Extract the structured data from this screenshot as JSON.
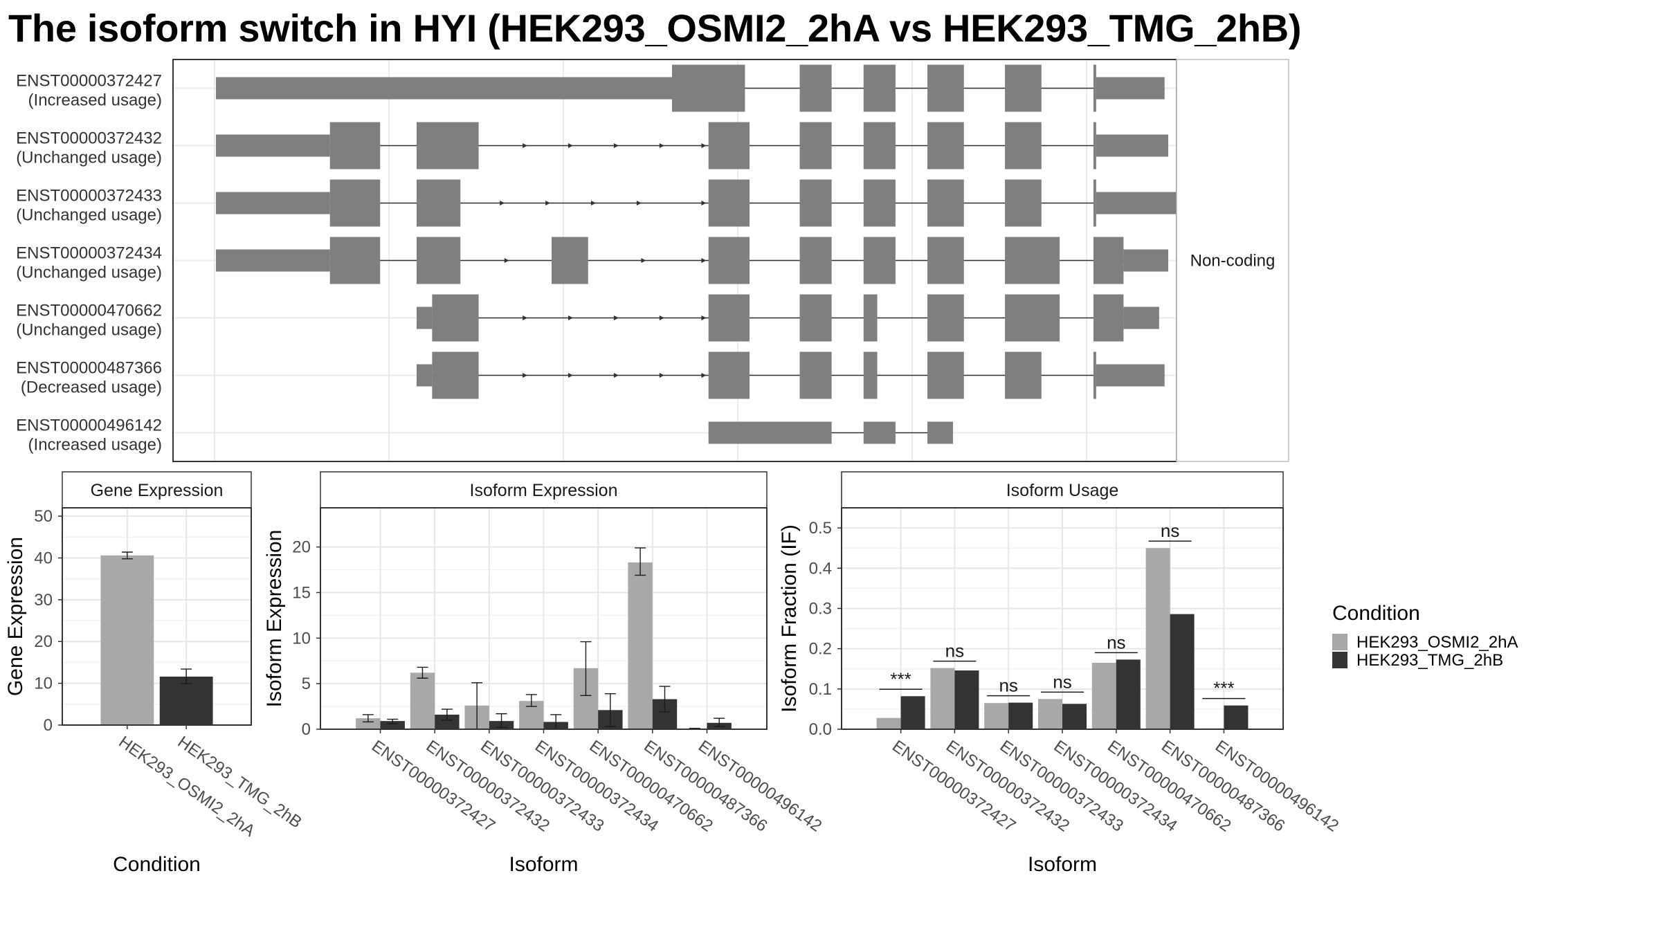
{
  "page": {
    "title": "The isoform switch in HYI (HEK293_OSMI2_2hA vs HEK293_TMG_2hB)"
  },
  "chart_data": [
    {
      "type": "gene-structure",
      "strip_label": "Non-coding",
      "x_domain": [
        0,
        1000
      ],
      "colors": {
        "exon": "#7f7f7f",
        "intron": "#333333",
        "grid": "#ebebeb",
        "border": "#333333"
      },
      "transcripts": [
        {
          "id": "ENST00000372427",
          "status": "(Increased usage)",
          "thin": [
            [
              0,
              500
            ]
          ],
          "thick": [
            [
              500,
              580
            ],
            [
              640,
              675
            ],
            [
              710,
              745
            ],
            [
              780,
              820
            ],
            [
              865,
              905
            ],
            [
              962,
              965
            ]
          ],
          "thin_tail": [
            [
              965,
              1040
            ]
          ],
          "arrows": []
        },
        {
          "id": "ENST00000372432",
          "status": "(Unchanged usage)",
          "thin": [
            [
              0,
              125
            ]
          ],
          "thick": [
            [
              125,
              180
            ],
            [
              220,
              288
            ],
            [
              540,
              585
            ],
            [
              640,
              675
            ],
            [
              710,
              745
            ],
            [
              780,
              820
            ],
            [
              865,
              905
            ],
            [
              962,
              965
            ]
          ],
          "thin_tail": [
            [
              965,
              1044
            ]
          ],
          "arrows": [
            340,
            390,
            440,
            490,
            536
          ]
        },
        {
          "id": "ENST00000372433",
          "status": "(Unchanged usage)",
          "thin": [
            [
              0,
              125
            ]
          ],
          "thick": [
            [
              125,
              180
            ],
            [
              220,
              268
            ],
            [
              540,
              585
            ],
            [
              640,
              675
            ],
            [
              710,
              745
            ],
            [
              780,
              820
            ],
            [
              865,
              905
            ],
            [
              962,
              965
            ]
          ],
          "thin_tail": [
            [
              965,
              1056
            ]
          ],
          "arrows": [
            315,
            365,
            415,
            465,
            536
          ]
        },
        {
          "id": "ENST00000372434",
          "status": "(Unchanged usage)",
          "thin": [
            [
              0,
              125
            ]
          ],
          "thick": [
            [
              125,
              180
            ],
            [
              220,
              268
            ],
            [
              368,
              408
            ],
            [
              540,
              585
            ],
            [
              640,
              675
            ],
            [
              710,
              745
            ],
            [
              780,
              820
            ],
            [
              865,
              925
            ],
            [
              962,
              995
            ]
          ],
          "thin_tail": [
            [
              995,
              1044
            ]
          ],
          "arrows": [
            320,
            470,
            536
          ]
        },
        {
          "id": "ENST00000470662",
          "status": "(Unchanged usage)",
          "thin": [
            [
              220,
              237
            ]
          ],
          "thick": [
            [
              237,
              288
            ],
            [
              540,
              585
            ],
            [
              640,
              675
            ],
            [
              710,
              725
            ],
            [
              780,
              820
            ],
            [
              865,
              925
            ],
            [
              962,
              995
            ]
          ],
          "thin_tail": [
            [
              995,
              1034
            ]
          ],
          "arrows": [
            340,
            390,
            440,
            490,
            536
          ]
        },
        {
          "id": "ENST00000487366",
          "status": "(Decreased usage)",
          "thin": [
            [
              220,
              237
            ]
          ],
          "thick": [
            [
              237,
              288
            ],
            [
              540,
              585
            ],
            [
              640,
              675
            ],
            [
              710,
              725
            ],
            [
              780,
              820
            ],
            [
              865,
              905
            ],
            [
              962,
              965
            ]
          ],
          "thin_tail": [
            [
              965,
              1040
            ]
          ],
          "arrows": [
            340,
            390,
            440,
            490,
            536
          ]
        },
        {
          "id": "ENST00000496142",
          "status": "(Increased usage)",
          "thin": [
            [
              540,
              675
            ],
            [
              710,
              745
            ],
            [
              780,
              808
            ]
          ],
          "thick": [],
          "thin_tail": [],
          "arrows": []
        }
      ]
    },
    {
      "type": "bar",
      "strip_title": "Gene Expression",
      "xlabel": "Condition",
      "ylabel": "Gene Expression",
      "ylim": [
        0,
        52
      ],
      "yticks": [
        0,
        10,
        20,
        30,
        40,
        50
      ],
      "categories": [
        "HEK293_OSMI2_2hA",
        "HEK293_TMG_2hB"
      ],
      "values": [
        40.6,
        11.6
      ],
      "errors": [
        [
          39.8,
          41.4
        ],
        [
          9.9,
          13.4
        ]
      ]
    },
    {
      "type": "bar",
      "strip_title": "Isoform Expression",
      "xlabel": "Isoform",
      "ylabel": "Isoform Expression",
      "ylim": [
        0,
        24.3
      ],
      "yticks": [
        0,
        5,
        10,
        15,
        20
      ],
      "categories": [
        "ENST00000372427",
        "ENST00000372432",
        "ENST00000372433",
        "ENST00000372434",
        "ENST00000470662",
        "ENST00000487366",
        "ENST00000496142"
      ],
      "series": [
        {
          "name": "HEK293_OSMI2_2hA",
          "values": [
            1.2,
            6.2,
            2.6,
            3.1,
            6.7,
            18.3,
            0.05
          ],
          "errors": [
            [
              0.8,
              1.6
            ],
            [
              5.6,
              6.8
            ],
            [
              0.0,
              5.1
            ],
            [
              2.5,
              3.8
            ],
            [
              3.7,
              9.6
            ],
            [
              16.9,
              19.9
            ],
            [
              0.0,
              0.1
            ]
          ]
        },
        {
          "name": "HEK293_TMG_2hB",
          "values": [
            0.9,
            1.6,
            0.9,
            0.8,
            2.1,
            3.3,
            0.7
          ],
          "errors": [
            [
              0.6,
              1.1
            ],
            [
              1.0,
              2.2
            ],
            [
              0.2,
              1.7
            ],
            [
              0.0,
              1.6
            ],
            [
              0.3,
              3.9
            ],
            [
              1.9,
              4.7
            ],
            [
              0.3,
              1.2
            ]
          ]
        }
      ]
    },
    {
      "type": "bar",
      "strip_title": "Isoform Usage",
      "xlabel": "Isoform",
      "ylabel": "Isoform Fraction (IF)",
      "ylim": [
        0,
        0.55
      ],
      "yticks": [
        0.0,
        0.1,
        0.2,
        0.3,
        0.4,
        0.5
      ],
      "ytick_labels": [
        "0.0",
        "0.1",
        "0.2",
        "0.3",
        "0.4",
        "0.5"
      ],
      "categories": [
        "ENST00000372427",
        "ENST00000372432",
        "ENST00000372433",
        "ENST00000372434",
        "ENST00000470662",
        "ENST00000487366",
        "ENST00000496142"
      ],
      "series": [
        {
          "name": "HEK293_OSMI2_2hA",
          "values": [
            0.028,
            0.152,
            0.065,
            0.075,
            0.165,
            0.45,
            0.002
          ]
        },
        {
          "name": "HEK293_TMG_2hB",
          "values": [
            0.082,
            0.146,
            0.066,
            0.063,
            0.173,
            0.286,
            0.059
          ]
        }
      ],
      "significance": [
        "***",
        "ns",
        "ns",
        "ns",
        "ns",
        "ns",
        "***"
      ]
    }
  ],
  "legend": {
    "title": "Condition",
    "entries": [
      {
        "label": "HEK293_OSMI2_2hA",
        "color": "#a8a8a8"
      },
      {
        "label": "HEK293_TMG_2hB",
        "color": "#333333"
      }
    ]
  }
}
